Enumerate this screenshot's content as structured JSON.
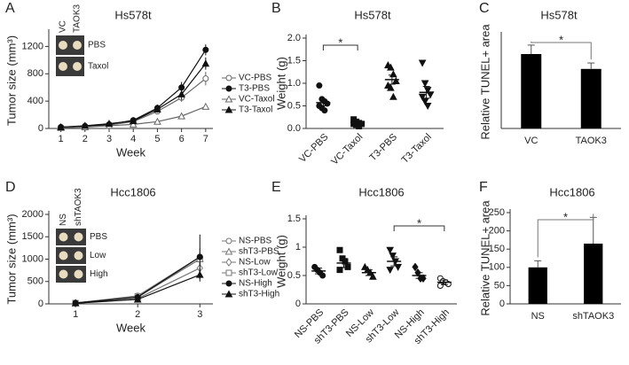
{
  "chart_data": [
    {
      "type": "line",
      "panel": "A",
      "title": "Hs578t",
      "xlabel": "Week",
      "ylabel": "Tumor size (mm³)",
      "x": [
        1,
        2,
        3,
        4,
        5,
        6,
        7
      ],
      "xlim": [
        0.5,
        7.3
      ],
      "xticks": [
        1,
        2,
        3,
        4,
        5,
        6,
        7
      ],
      "ylim": [
        0,
        1400
      ],
      "yticks": [
        0,
        400,
        800,
        1200
      ],
      "inset": {
        "columns": [
          "VC",
          "TAOK3"
        ],
        "rows": [
          "PBS",
          "Taxol"
        ]
      },
      "series": [
        {
          "name": "VC-PBS",
          "color": "#666666",
          "marker": "open-circle",
          "values": [
            20,
            30,
            50,
            100,
            250,
            450,
            730
          ],
          "errors": [
            5,
            5,
            10,
            20,
            40,
            60,
            100
          ]
        },
        {
          "name": "T3-PBS",
          "color": "#111111",
          "marker": "filled-circle",
          "values": [
            20,
            35,
            60,
            120,
            300,
            600,
            1150
          ],
          "errors": [
            5,
            5,
            10,
            20,
            50,
            80,
            80
          ]
        },
        {
          "name": "VC-Taxol",
          "color": "#666666",
          "marker": "open-triangle",
          "values": [
            10,
            20,
            40,
            60,
            100,
            180,
            320
          ],
          "errors": [
            5,
            5,
            5,
            10,
            20,
            30,
            40
          ]
        },
        {
          "name": "T3-Taxol",
          "color": "#111111",
          "marker": "filled-triangle",
          "values": [
            20,
            40,
            70,
            110,
            280,
            500,
            950
          ],
          "errors": [
            5,
            30,
            10,
            20,
            50,
            80,
            90
          ]
        }
      ]
    },
    {
      "type": "dot",
      "panel": "B",
      "title": "Hs578t",
      "ylabel": "Weight (g)",
      "categories": [
        "VC-PBS",
        "VC-Taxol",
        "T3-PBS",
        "T3-Taxol"
      ],
      "markers": [
        "filled-circle",
        "filled-square",
        "filled-triangle",
        "filled-triangle-down"
      ],
      "values": [
        0.57,
        0.13,
        1.08,
        0.8
      ],
      "errors": [
        0.07,
        0.03,
        0.1,
        0.13
      ],
      "points": [
        [
          0.95,
          0.65,
          0.6,
          0.55,
          0.5,
          0.45,
          0.4
        ],
        [
          0.2,
          0.15,
          0.12,
          0.1,
          0.1,
          0.08,
          0.05
        ],
        [
          1.4,
          1.35,
          1.2,
          1.05,
          0.95,
          0.9,
          0.7
        ],
        [
          1.45,
          1.0,
          0.85,
          0.75,
          0.7,
          0.6,
          0.5
        ]
      ],
      "ylim": [
        0,
        2
      ],
      "yticks": [
        {
          "value": 0,
          "label": "0.0"
        },
        {
          "value": 0.5,
          "label": "0.5"
        },
        {
          "value": 1,
          "label": "1.0"
        },
        {
          "value": 1.5,
          "label": "1.5"
        },
        {
          "value": 2,
          "label": "2.0"
        }
      ],
      "significance": {
        "text": "*",
        "between": [
          "VC-PBS",
          "VC-Taxol"
        ]
      }
    },
    {
      "type": "bar",
      "panel": "C",
      "title": "Hs578t",
      "ylabel": "Relative TUNEL+ area",
      "color": "#000000",
      "categories": [
        "VC",
        "TAOK3"
      ],
      "values": [
        100,
        80
      ],
      "errors": [
        12,
        8
      ],
      "ylim": [
        0,
        125
      ],
      "significance": {
        "text": "*",
        "between": [
          "VC",
          "TAOK3"
        ]
      }
    },
    {
      "type": "line",
      "panel": "D",
      "title": "Hcc1806",
      "xlabel": "Week",
      "ylabel": "Tumor size (mm³)",
      "x": [
        1,
        2,
        3
      ],
      "xlim": [
        0.57,
        3.21
      ],
      "xticks": [
        1,
        2,
        3
      ],
      "ylim": [
        0,
        2000
      ],
      "yticks": [
        0,
        500,
        1000,
        1500,
        2000
      ],
      "inset": {
        "columns": [
          "NS",
          "shTAOK3"
        ],
        "rows": [
          "PBS",
          "Low",
          "High"
        ]
      },
      "series": [
        {
          "name": "NS-PBS",
          "color": "#777777",
          "marker": "open-circle",
          "values": [
            20,
            180,
            1050
          ],
          "errors": [
            5,
            30,
            200
          ]
        },
        {
          "name": "shT3-PBS",
          "color": "#777777",
          "marker": "open-triangle",
          "values": [
            20,
            150,
            1000
          ],
          "errors": [
            5,
            25,
            150
          ]
        },
        {
          "name": "NS-Low",
          "color": "#777777",
          "marker": "open-diamond",
          "values": [
            15,
            120,
            800
          ],
          "errors": [
            5,
            20,
            150
          ]
        },
        {
          "name": "shT3-Low",
          "color": "#777777",
          "marker": "open-square",
          "values": [
            20,
            170,
            1000
          ],
          "errors": [
            5,
            30,
            150
          ]
        },
        {
          "name": "NS-High",
          "color": "#111111",
          "marker": "filled-circle",
          "values": [
            20,
            150,
            1050
          ],
          "errors": [
            5,
            30,
            500
          ]
        },
        {
          "name": "shT3-High",
          "color": "#111111",
          "marker": "filled-triangle",
          "values": [
            15,
            100,
            650
          ],
          "errors": [
            5,
            20,
            150
          ]
        }
      ]
    },
    {
      "type": "dot",
      "panel": "E",
      "title": "Hcc1806",
      "ylabel": "Weight (g)",
      "categories": [
        "NS-PBS",
        "shT3-PBS",
        "NS-Low",
        "shT3-Low",
        "NS-High",
        "shT3-High"
      ],
      "markers": [
        "filled-circle",
        "filled-square",
        "filled-triangle",
        "filled-triangle-down",
        "filled-diamond",
        "open-circle"
      ],
      "values": [
        0.58,
        0.72,
        0.55,
        0.75,
        0.5,
        0.38
      ],
      "errors": [
        0.05,
        0.08,
        0.05,
        0.08,
        0.05,
        0.04
      ],
      "points": [
        [
          0.65,
          0.6,
          0.55,
          0.5
        ],
        [
          0.95,
          0.8,
          0.75,
          0.65,
          0.6
        ],
        [
          0.65,
          0.6,
          0.55,
          0.48
        ],
        [
          0.95,
          0.85,
          0.75,
          0.65,
          0.6
        ],
        [
          0.65,
          0.55,
          0.45,
          0.45
        ],
        [
          0.45,
          0.4,
          0.38,
          0.35,
          0.32
        ]
      ],
      "ylim": [
        0,
        1.5
      ],
      "yticks": [
        0,
        0.5,
        1,
        1.5
      ],
      "significance": {
        "text": "*",
        "between": [
          "shT3-Low",
          "shT3-High"
        ]
      }
    },
    {
      "type": "bar",
      "panel": "F",
      "title": "Hcc1806",
      "ylabel": "Relative TUNEL+ area",
      "color": "#000000",
      "categories": [
        "NS",
        "shTAOK3"
      ],
      "values": [
        100,
        165
      ],
      "errors": [
        18,
        72
      ],
      "ylim": [
        0,
        250
      ],
      "yticks": [
        0,
        50,
        100,
        150,
        200,
        250
      ],
      "significance": {
        "text": "*",
        "between": [
          "NS",
          "shTAOK3"
        ]
      }
    }
  ]
}
